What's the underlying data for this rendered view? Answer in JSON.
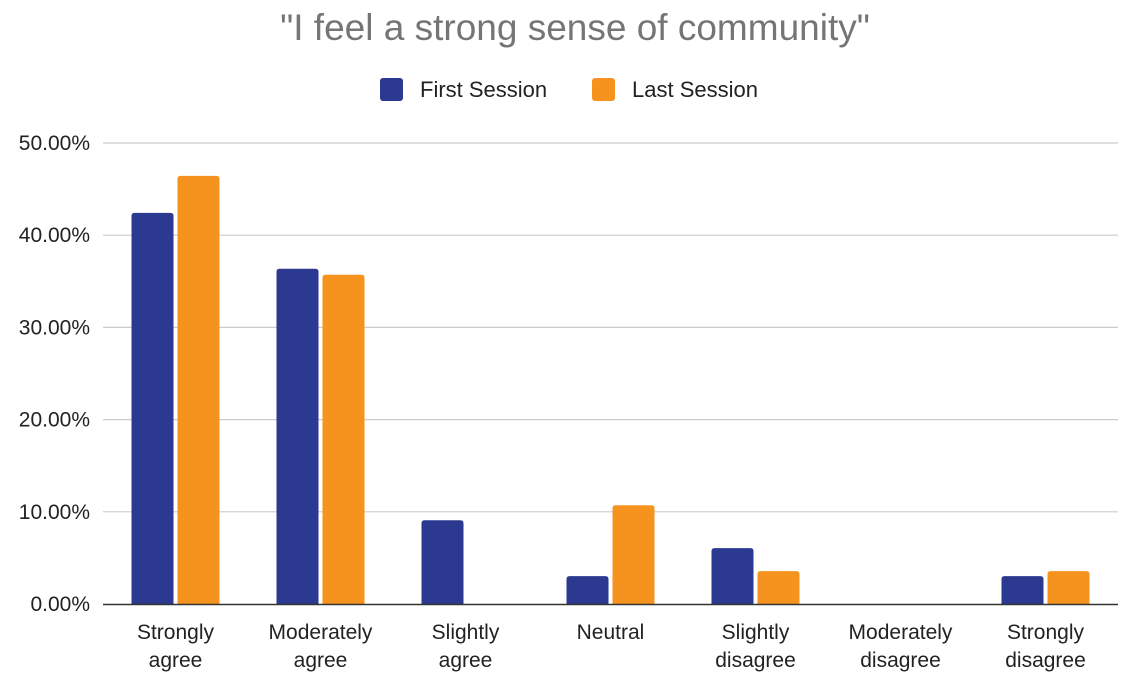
{
  "chart_data": {
    "type": "bar",
    "title": "\"I feel a strong sense of community\"",
    "categories": [
      [
        "Strongly",
        "agree"
      ],
      [
        "Moderately",
        "agree"
      ],
      [
        "Slightly",
        "agree"
      ],
      [
        "Neutral"
      ],
      [
        "Slightly",
        "disagree"
      ],
      [
        "Moderately",
        "disagree"
      ],
      [
        "Strongly",
        "disagree"
      ]
    ],
    "series": [
      {
        "name": "First Session",
        "color": "#2b3990",
        "values": [
          42.42,
          36.36,
          9.09,
          3.03,
          6.06,
          0,
          3.03
        ]
      },
      {
        "name": "Last Session",
        "color": "#f5931e",
        "values": [
          46.43,
          35.71,
          0,
          10.71,
          3.57,
          0,
          3.57
        ]
      }
    ],
    "ylim": [
      0,
      50
    ],
    "yticks": [
      "0.00%",
      "10.00%",
      "20.00%",
      "30.00%",
      "40.00%",
      "50.00%"
    ],
    "grid": true,
    "legend_position": "top-center"
  }
}
